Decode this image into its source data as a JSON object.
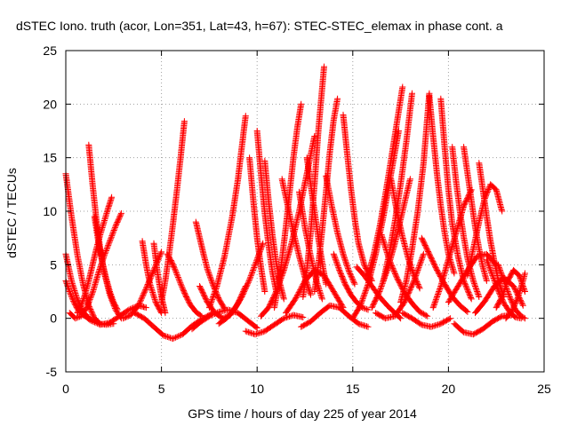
{
  "chart_data": {
    "type": "scatter",
    "title": "dSTEC Iono. truth (acor, Lon=351, Lat=43, h=67): STEC-STEC_elemax in phase cont. a",
    "xlabel": "GPS time / hours of day 225 of year 2014",
    "ylabel": "dSTEC  / TECUs",
    "xlim": [
      0,
      25
    ],
    "ylim": [
      -5,
      25
    ],
    "xticks": [
      0,
      5,
      10,
      15,
      20,
      25
    ],
    "yticks": [
      -5,
      0,
      5,
      10,
      15,
      20,
      25
    ],
    "xtick_labels": [
      "0",
      "5",
      "10",
      "15",
      "20",
      "25"
    ],
    "ytick_labels": [
      "-5",
      "0",
      "5",
      "10",
      "15",
      "20",
      "25"
    ],
    "grid": true,
    "marker": "plus",
    "color": "#ff0000",
    "series": [
      {
        "x": [
          0.0,
          0.3,
          0.6,
          0.9,
          1.2,
          1.5,
          1.8,
          2.1,
          2.5
        ],
        "y": [
          13.5,
          9.5,
          6.0,
          3.2,
          1.2,
          0.0,
          -0.5,
          -0.6,
          -0.5
        ]
      },
      {
        "x": [
          0.0,
          0.3,
          0.6,
          0.9,
          1.2,
          1.5
        ],
        "y": [
          6.0,
          3.5,
          1.8,
          0.6,
          0.0,
          -0.2
        ]
      },
      {
        "x": [
          0.0,
          0.2,
          0.4,
          0.6,
          0.9,
          1.2
        ],
        "y": [
          3.5,
          2.5,
          1.6,
          0.9,
          0.3,
          0.1
        ]
      },
      {
        "x": [
          0.2,
          0.5,
          0.8,
          1.1,
          1.4,
          1.7,
          2.0,
          2.3,
          2.6,
          2.9
        ],
        "y": [
          0.5,
          0.0,
          0.2,
          1.0,
          2.4,
          4.2,
          5.8,
          7.2,
          8.6,
          9.8
        ]
      },
      {
        "x": [
          0.6,
          0.8,
          1.0,
          1.2,
          1.4,
          1.6,
          1.8,
          2.0,
          2.2,
          2.4
        ],
        "y": [
          0.5,
          1.2,
          2.2,
          3.5,
          5.0,
          6.5,
          7.8,
          9.0,
          10.2,
          11.3
        ]
      },
      {
        "x": [
          1.2,
          1.4,
          1.6,
          1.8,
          2.0,
          2.3,
          2.6,
          2.9
        ],
        "y": [
          16.2,
          12.5,
          9.2,
          6.5,
          4.3,
          2.2,
          0.8,
          0.0
        ]
      },
      {
        "x": [
          1.5,
          1.7,
          1.9,
          2.1,
          2.3,
          2.5,
          2.7
        ],
        "y": [
          9.5,
          7.2,
          5.3,
          3.8,
          2.5,
          1.5,
          0.8
        ]
      },
      {
        "x": [
          0.8,
          1.3,
          1.8,
          2.3,
          2.8,
          3.3,
          3.8,
          4.2
        ],
        "y": [
          0.5,
          -0.2,
          -0.6,
          -0.4,
          0.2,
          0.8,
          1.2,
          1.0
        ]
      },
      {
        "x": [
          3.0,
          3.4,
          3.8,
          4.2,
          4.6,
          5.0
        ],
        "y": [
          0.0,
          0.3,
          1.2,
          2.8,
          4.5,
          6.2
        ]
      },
      {
        "x": [
          4.0,
          4.2,
          4.4,
          4.7,
          5.0
        ],
        "y": [
          7.2,
          5.0,
          3.2,
          1.5,
          0.5
        ]
      },
      {
        "x": [
          4.6,
          4.8,
          5.0,
          5.2
        ],
        "y": [
          7.0,
          4.2,
          2.0,
          0.5
        ]
      },
      {
        "x": [
          3.6,
          4.1,
          4.6,
          5.1,
          5.6,
          6.1,
          6.6,
          7.1,
          7.6
        ],
        "y": [
          0.5,
          0.0,
          -0.8,
          -1.6,
          -1.9,
          -1.5,
          -0.7,
          -0.1,
          0.4
        ]
      },
      {
        "x": [
          5.0,
          5.2,
          5.4,
          5.6,
          5.8,
          6.0,
          6.2
        ],
        "y": [
          1.5,
          3.5,
          6.0,
          8.8,
          11.8,
          15.0,
          18.4
        ]
      },
      {
        "x": [
          5.3,
          5.5,
          5.7,
          5.9,
          6.1,
          6.3,
          6.5,
          6.8,
          7.1
        ],
        "y": [
          6.0,
          5.4,
          4.6,
          3.7,
          2.8,
          2.0,
          1.3,
          0.6,
          0.2
        ]
      },
      {
        "x": [
          6.8,
          7.0,
          7.2,
          7.4,
          7.7,
          8.0,
          8.3
        ],
        "y": [
          9.0,
          7.5,
          6.0,
          4.6,
          3.1,
          1.8,
          0.9
        ]
      },
      {
        "x": [
          7.0,
          7.4,
          7.8,
          8.2,
          8.6,
          9.0,
          9.4
        ],
        "y": [
          3.0,
          1.5,
          0.5,
          0.0,
          0.3,
          1.4,
          3.0
        ]
      },
      {
        "x": [
          7.5,
          7.9,
          8.3,
          8.7,
          9.0,
          9.2,
          9.4
        ],
        "y": [
          1.0,
          3.0,
          5.8,
          9.5,
          13.0,
          16.0,
          18.9
        ]
      },
      {
        "x": [
          6.6,
          7.0,
          7.5,
          8.0,
          8.5,
          9.0,
          9.5,
          10.0
        ],
        "y": [
          -1.0,
          -0.4,
          0.2,
          0.6,
          0.8,
          0.5,
          -0.2,
          -0.9
        ]
      },
      {
        "x": [
          8.0,
          8.4,
          8.8,
          9.2,
          9.6,
          10.0,
          10.3
        ],
        "y": [
          -0.5,
          0.0,
          0.8,
          2.0,
          3.6,
          5.5,
          7.0
        ]
      },
      {
        "x": [
          9.6,
          9.8,
          10.0,
          10.2,
          10.4
        ],
        "y": [
          15.0,
          11.0,
          7.5,
          4.8,
          2.5
        ]
      },
      {
        "x": [
          10.0,
          10.2,
          10.4,
          10.6,
          10.8,
          11.0
        ],
        "y": [
          17.5,
          13.5,
          9.8,
          6.8,
          4.3,
          2.5
        ]
      },
      {
        "x": [
          10.4,
          10.6,
          10.8,
          11.0,
          11.2,
          11.4
        ],
        "y": [
          14.7,
          11.0,
          7.8,
          5.2,
          3.2,
          1.8
        ]
      },
      {
        "x": [
          9.4,
          9.9,
          10.4,
          10.9,
          11.4,
          11.9,
          12.4
        ],
        "y": [
          -1.2,
          -1.5,
          -1.2,
          -0.6,
          0.0,
          0.3,
          0.1
        ]
      },
      {
        "x": [
          10.2,
          10.6,
          11.0,
          11.4,
          11.8,
          12.2,
          12.6,
          13.0
        ],
        "y": [
          0.2,
          1.0,
          2.5,
          4.5,
          7.0,
          10.0,
          13.5,
          17.0
        ]
      },
      {
        "x": [
          10.9,
          11.1,
          11.3,
          11.5,
          11.7,
          11.9,
          12.1,
          12.3
        ],
        "y": [
          1.0,
          3.0,
          5.5,
          8.5,
          11.8,
          15.0,
          17.8,
          20.0
        ]
      },
      {
        "x": [
          11.3,
          11.6,
          11.9,
          12.2,
          12.5,
          12.8
        ],
        "y": [
          13.0,
          10.5,
          8.0,
          5.8,
          3.8,
          2.2
        ]
      },
      {
        "x": [
          12.2,
          12.5,
          12.8,
          13.1,
          13.4
        ],
        "y": [
          11.8,
          8.5,
          5.8,
          3.5,
          1.8
        ]
      },
      {
        "x": [
          12.6,
          12.8,
          13.0,
          13.2,
          13.4,
          13.6
        ],
        "y": [
          15.0,
          12.5,
          10.0,
          7.5,
          5.2,
          3.2
        ]
      },
      {
        "x": [
          12.4,
          12.6,
          12.8,
          13.0,
          13.2,
          13.5
        ],
        "y": [
          2.0,
          4.5,
          8.0,
          12.5,
          17.5,
          23.5
        ]
      },
      {
        "x": [
          13.0,
          13.2,
          13.4,
          13.6,
          13.8,
          14.0,
          14.2
        ],
        "y": [
          2.5,
          5.0,
          8.2,
          11.8,
          15.5,
          18.5,
          20.5
        ]
      },
      {
        "x": [
          11.5,
          12.0,
          12.5,
          13.0,
          13.5,
          14.0,
          14.5
        ],
        "y": [
          0.5,
          1.8,
          3.5,
          4.5,
          4.0,
          2.5,
          1.0
        ]
      },
      {
        "x": [
          12.3,
          12.8,
          13.3,
          13.8,
          14.3,
          14.8,
          15.3,
          15.8
        ],
        "y": [
          -0.8,
          -0.3,
          0.5,
          1.2,
          1.0,
          0.2,
          -0.5,
          -0.8
        ]
      },
      {
        "x": [
          13.6,
          13.9,
          14.2,
          14.5,
          14.8,
          15.1
        ],
        "y": [
          13.3,
          10.5,
          8.0,
          6.0,
          4.4,
          3.2
        ]
      },
      {
        "x": [
          14.0,
          14.3,
          14.6,
          14.9,
          15.2,
          15.5,
          15.8
        ],
        "y": [
          6.0,
          4.5,
          3.2,
          2.2,
          1.5,
          1.0,
          0.8
        ]
      },
      {
        "x": [
          14.5,
          14.7,
          14.9,
          15.1,
          15.3,
          15.6,
          16.0
        ],
        "y": [
          19.0,
          15.5,
          12.2,
          9.3,
          7.0,
          5.0,
          3.5
        ]
      },
      {
        "x": [
          15.0,
          15.4,
          15.8,
          16.2,
          16.6,
          17.0,
          17.4
        ],
        "y": [
          0.0,
          1.2,
          3.2,
          6.0,
          9.5,
          13.5,
          17.5
        ]
      },
      {
        "x": [
          15.2,
          15.6,
          16.0,
          16.4,
          16.8,
          17.2,
          17.5
        ],
        "y": [
          4.8,
          4.0,
          3.0,
          2.0,
          1.2,
          0.5,
          0.0
        ]
      },
      {
        "x": [
          15.8,
          16.1,
          16.4,
          16.7,
          17.0,
          17.3,
          17.6
        ],
        "y": [
          4.0,
          6.0,
          8.5,
          11.5,
          14.8,
          18.2,
          21.6
        ]
      },
      {
        "x": [
          16.0,
          16.4,
          16.8,
          17.2,
          17.6,
          18.0
        ],
        "y": [
          1.0,
          2.5,
          4.5,
          7.0,
          10.0,
          13.0
        ]
      },
      {
        "x": [
          16.2,
          16.7,
          17.2,
          17.7,
          18.2,
          18.7
        ],
        "y": [
          0.5,
          0.0,
          0.2,
          1.5,
          3.5,
          6.0
        ]
      },
      {
        "x": [
          16.5,
          16.9,
          17.3,
          17.7,
          18.1,
          18.5,
          18.9
        ],
        "y": [
          7.8,
          5.5,
          3.8,
          2.4,
          1.4,
          0.6,
          0.2
        ]
      },
      {
        "x": [
          17.0,
          17.3,
          17.6,
          17.9,
          18.2,
          18.5
        ],
        "y": [
          13.0,
          10.0,
          7.6,
          5.6,
          4.0,
          2.8
        ]
      },
      {
        "x": [
          16.6,
          16.9,
          17.2,
          17.5,
          17.8,
          18.1
        ],
        "y": [
          3.5,
          6.0,
          9.0,
          12.5,
          16.5,
          21.0
        ]
      },
      {
        "x": [
          17.5,
          17.8,
          18.1,
          18.4,
          18.7,
          19.0
        ],
        "y": [
          1.5,
          3.5,
          6.5,
          10.0,
          14.5,
          21.0
        ]
      },
      {
        "x": [
          17.6,
          18.1,
          18.6,
          19.1,
          19.6,
          20.1
        ],
        "y": [
          0.5,
          0.0,
          -0.6,
          -0.8,
          -0.5,
          0.0
        ]
      },
      {
        "x": [
          18.6,
          19.0,
          19.4,
          19.8,
          20.2,
          20.6,
          21.0
        ],
        "y": [
          7.5,
          6.0,
          4.5,
          3.2,
          2.0,
          1.2,
          0.6
        ]
      },
      {
        "x": [
          19.0,
          19.2,
          19.4,
          19.6,
          19.8,
          20.0,
          20.3
        ],
        "y": [
          20.8,
          17.0,
          13.5,
          10.5,
          8.0,
          6.0,
          4.2
        ]
      },
      {
        "x": [
          19.6,
          19.8,
          20.0,
          20.2,
          20.5,
          20.8,
          21.2
        ],
        "y": [
          20.5,
          16.0,
          12.0,
          8.8,
          5.8,
          3.5,
          1.8
        ]
      },
      {
        "x": [
          19.2,
          19.6,
          20.0,
          20.4,
          20.8,
          21.2
        ],
        "y": [
          1.0,
          3.0,
          5.5,
          8.0,
          10.5,
          12.0
        ]
      },
      {
        "x": [
          20.2,
          20.4,
          20.6,
          20.8,
          21.0,
          21.3,
          21.6
        ],
        "y": [
          16.0,
          12.8,
          10.0,
          7.6,
          5.6,
          3.5,
          2.0
        ]
      },
      {
        "x": [
          20.0,
          20.5,
          21.0,
          21.5,
          22.0,
          22.5
        ],
        "y": [
          1.5,
          3.0,
          4.5,
          5.8,
          6.0,
          5.0
        ]
      },
      {
        "x": [
          20.8,
          21.0,
          21.2,
          21.4,
          21.6,
          21.8,
          22.0
        ],
        "y": [
          16.0,
          13.5,
          11.0,
          8.5,
          6.5,
          4.8,
          3.5
        ]
      },
      {
        "x": [
          21.0,
          21.3,
          21.6,
          21.9,
          22.2,
          22.5,
          22.8
        ],
        "y": [
          4.0,
          6.5,
          9.0,
          11.2,
          12.5,
          12.0,
          10.0
        ]
      },
      {
        "x": [
          21.6,
          21.8,
          22.0,
          22.2,
          22.4,
          22.6,
          22.9
        ],
        "y": [
          14.5,
          12.0,
          9.5,
          7.2,
          5.3,
          3.6,
          2.0
        ]
      },
      {
        "x": [
          20.3,
          20.8,
          21.3,
          21.8,
          22.3,
          22.8,
          23.3
        ],
        "y": [
          -0.5,
          -1.3,
          -1.5,
          -1.0,
          -0.3,
          0.2,
          0.3
        ]
      },
      {
        "x": [
          22.0,
          22.3,
          22.6,
          22.9,
          23.2,
          23.5,
          23.8
        ],
        "y": [
          5.5,
          4.0,
          2.6,
          1.4,
          0.6,
          0.1,
          0.0
        ]
      },
      {
        "x": [
          22.5,
          22.8,
          23.1,
          23.4,
          23.7,
          24.0
        ],
        "y": [
          1.0,
          2.0,
          3.5,
          4.5,
          4.0,
          2.5
        ]
      },
      {
        "x": [
          22.6,
          22.9,
          23.2,
          23.5,
          23.8,
          24.0
        ],
        "y": [
          5.0,
          3.5,
          2.0,
          0.8,
          0.2,
          0.0
        ]
      },
      {
        "x": [
          23.0,
          23.3,
          23.6,
          23.9,
          24.0
        ],
        "y": [
          0.0,
          0.6,
          1.8,
          3.5,
          4.2
        ]
      },
      {
        "x": [
          21.4,
          21.9,
          22.4,
          22.9,
          23.4,
          23.9
        ],
        "y": [
          0.5,
          1.6,
          3.0,
          3.8,
          3.0,
          1.2
        ]
      }
    ]
  }
}
